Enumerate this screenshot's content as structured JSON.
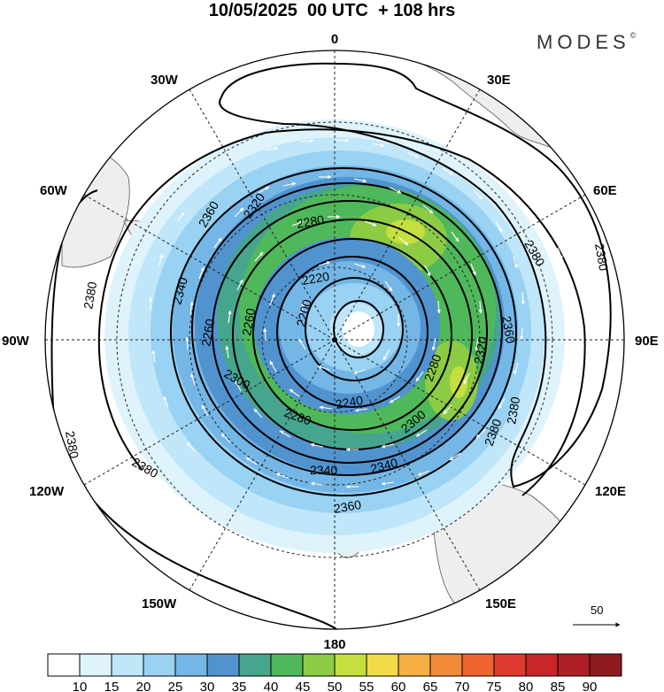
{
  "title": "10/05/2025  00 UTC  + 108 hrs",
  "brand": "MODES",
  "brand_mark": "©",
  "longitude_labels": {
    "top": "0",
    "bottom": "180",
    "left": "90W",
    "right": "90E",
    "w30": "30W",
    "e30": "30E",
    "w60": "60W",
    "e60": "60E",
    "w120": "120W",
    "e120": "120E",
    "w150": "150W",
    "e150": "150E"
  },
  "wind_reference": {
    "value": "50"
  },
  "contour_levels": [
    "2200",
    "2220",
    "2240",
    "2260",
    "2280",
    "2300",
    "2320",
    "2340",
    "2360",
    "2380"
  ],
  "contour_labels": [
    "2360",
    "2320",
    "2280",
    "2340",
    "2220",
    "2260",
    "2200",
    "2260",
    "2300",
    "2280",
    "2240",
    "2280",
    "2300",
    "2320",
    "2360",
    "2340",
    "2340",
    "2360",
    "2380",
    "2380",
    "2380",
    "2380",
    "2380",
    "2380",
    "2380"
  ],
  "colorbar": {
    "labels": [
      "10",
      "15",
      "20",
      "25",
      "30",
      "35",
      "40",
      "45",
      "50",
      "55",
      "60",
      "65",
      "70",
      "75",
      "80",
      "85",
      "90"
    ],
    "colors": [
      "#ffffff",
      "#dff3fc",
      "#bfe6f9",
      "#99d2f2",
      "#74b6e6",
      "#5193cf",
      "#46a58d",
      "#4fb85a",
      "#8ccc45",
      "#c7de3f",
      "#f2db48",
      "#f6b042",
      "#f38a38",
      "#ee6430",
      "#df3a2d",
      "#c8262b",
      "#ae1f26",
      "#8e1a1f"
    ]
  }
}
